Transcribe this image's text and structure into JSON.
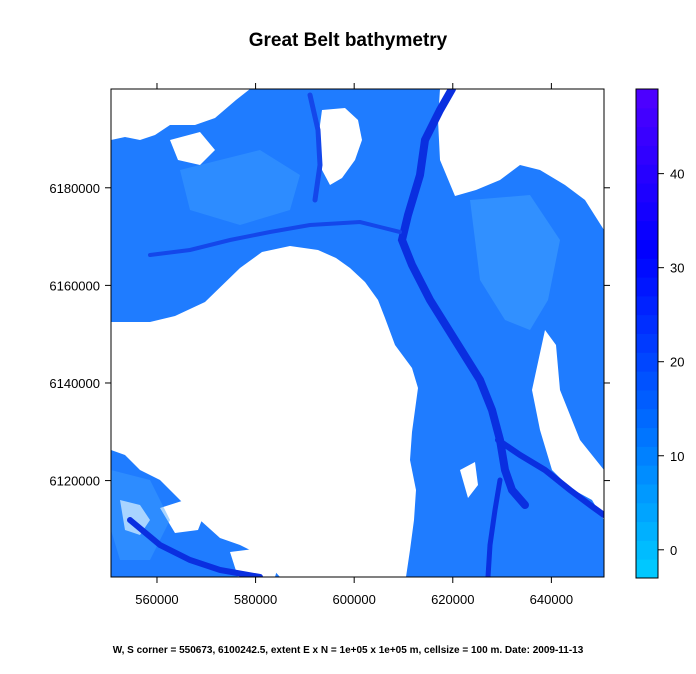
{
  "chart_data": {
    "type": "heatmap",
    "title": "Great Belt bathymetry",
    "subtitle": "W, S corner = 550673, 6100242.5, extent E x N = 1e+05 x 1e+05 m, cellsize = 100 m. Date: 2009-11-13",
    "xlabel": "",
    "ylabel": "",
    "xlim": [
      550673,
      650673
    ],
    "ylim": [
      6100242.5,
      6200242.5
    ],
    "x_ticks": [
      {
        "value": 560000,
        "label": "560000"
      },
      {
        "value": 580000,
        "label": "580000"
      },
      {
        "value": 600000,
        "label": "600000"
      },
      {
        "value": 620000,
        "label": "620000"
      },
      {
        "value": 640000,
        "label": "640000"
      }
    ],
    "y_ticks": [
      {
        "value": 6120000,
        "label": "6120000"
      },
      {
        "value": 6140000,
        "label": "6140000"
      },
      {
        "value": 6160000,
        "label": "6160000"
      },
      {
        "value": 6180000,
        "label": "6180000"
      }
    ],
    "colorbar": {
      "range": [
        -3,
        49
      ],
      "ticks": [
        {
          "value": 0,
          "label": "0"
        },
        {
          "value": 10,
          "label": "10"
        },
        {
          "value": 20,
          "label": "20"
        },
        {
          "value": 30,
          "label": "30"
        },
        {
          "value": 40,
          "label": "40"
        }
      ],
      "low_color": "#00C8FF",
      "high_color": "#5500FF"
    },
    "land_color": "#FFFFFF",
    "water_shallow_color": "#2B8CFF",
    "water_mid_color": "#0066FF",
    "channel_color": "#0A2FE0"
  }
}
